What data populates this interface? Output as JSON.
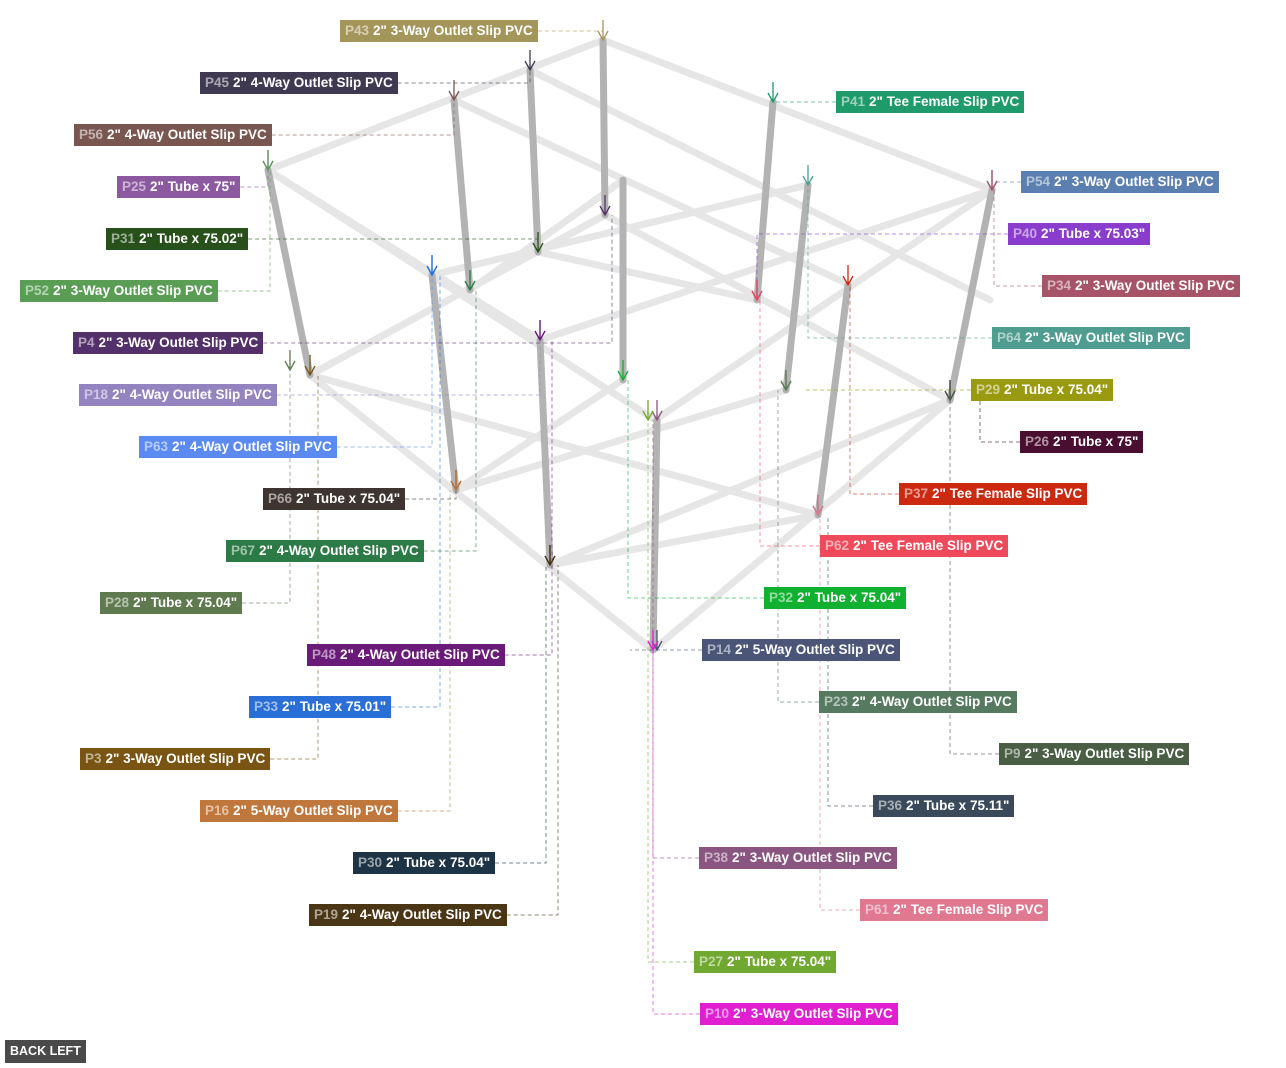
{
  "view_button": "BACK LEFT",
  "labels": [
    {
      "id": "P43",
      "text": "2\" 3-Way Outlet Slip PVC",
      "color": "#a4955a"
    },
    {
      "id": "P45",
      "text": "2\" 4-Way Outlet Slip PVC",
      "color": "#3f3a52"
    },
    {
      "id": "P56",
      "text": "2\" 4-Way Outlet Slip PVC",
      "color": "#7a5650"
    },
    {
      "id": "P25",
      "text": "2\" Tube x 75\"",
      "color": "#8c59a0"
    },
    {
      "id": "P31",
      "text": "2\" Tube x 75.02\"",
      "color": "#27501a"
    },
    {
      "id": "P52",
      "text": "2\" 3-Way Outlet Slip PVC",
      "color": "#5a9e55"
    },
    {
      "id": "P4",
      "text": "2\" 3-Way Outlet Slip PVC",
      "color": "#54306a"
    },
    {
      "id": "P18",
      "text": "2\" 4-Way Outlet Slip PVC",
      "color": "#9384c0"
    },
    {
      "id": "P63",
      "text": "2\" 4-Way Outlet Slip PVC",
      "color": "#5b8af0"
    },
    {
      "id": "P66",
      "text": "2\" Tube x 75.04\"",
      "color": "#3e3530"
    },
    {
      "id": "P67",
      "text": "2\" 4-Way Outlet Slip PVC",
      "color": "#2c7a45"
    },
    {
      "id": "P28",
      "text": "2\" Tube x 75.04\"",
      "color": "#5f7a4f"
    },
    {
      "id": "P48",
      "text": "2\" 4-Way Outlet Slip PVC",
      "color": "#6a1a78"
    },
    {
      "id": "P33",
      "text": "2\" Tube x 75.01\"",
      "color": "#2a6fd8"
    },
    {
      "id": "P3",
      "text": "2\" 3-Way Outlet Slip PVC",
      "color": "#7a5412"
    },
    {
      "id": "P16",
      "text": "2\" 5-Way Outlet Slip PVC",
      "color": "#c0773c"
    },
    {
      "id": "P30",
      "text": "2\" Tube x 75.04\"",
      "color": "#1c3445"
    },
    {
      "id": "P19",
      "text": "2\" 4-Way Outlet Slip PVC",
      "color": "#4a3515"
    },
    {
      "id": "P41",
      "text": "2\" Tee Female Slip PVC",
      "color": "#1f9a6a"
    },
    {
      "id": "P54",
      "text": "2\" 3-Way Outlet Slip PVC",
      "color": "#5a7fb0"
    },
    {
      "id": "P40",
      "text": "2\" Tube x 75.03\"",
      "color": "#8a3ccc"
    },
    {
      "id": "P34",
      "text": "2\" 3-Way Outlet Slip PVC",
      "color": "#a85468"
    },
    {
      "id": "P64",
      "text": "2\" 3-Way Outlet Slip PVC",
      "color": "#4f9c90"
    },
    {
      "id": "P29",
      "text": "2\" Tube x 75.04\"",
      "color": "#9a9a10"
    },
    {
      "id": "P26",
      "text": "2\" Tube x 75\"",
      "color": "#4a0e30"
    },
    {
      "id": "P37",
      "text": "2\" Tee Female Slip PVC",
      "color": "#cc2a10"
    },
    {
      "id": "P62",
      "text": "2\" Tee Female Slip PVC",
      "color": "#ee4a5a"
    },
    {
      "id": "P32",
      "text": "2\" Tube x 75.04\"",
      "color": "#10b030"
    },
    {
      "id": "P14",
      "text": "2\" 5-Way Outlet Slip PVC",
      "color": "#4a5578"
    },
    {
      "id": "P23",
      "text": "2\" 4-Way Outlet Slip PVC",
      "color": "#557a60"
    },
    {
      "id": "P9",
      "text": "2\" 3-Way Outlet Slip PVC",
      "color": "#4a5e45"
    },
    {
      "id": "P36",
      "text": "2\" Tube x 75.11\"",
      "color": "#3a4a5a"
    },
    {
      "id": "P38",
      "text": "2\" 3-Way Outlet Slip PVC",
      "color": "#8a5580"
    },
    {
      "id": "P61",
      "text": "2\" Tee Female Slip PVC",
      "color": "#e07890"
    },
    {
      "id": "P27",
      "text": "2\" Tube x 75.04\"",
      "color": "#70a830"
    },
    {
      "id": "P10",
      "text": "2\" 3-Way Outlet Slip PVC",
      "color": "#e020d0"
    }
  ]
}
